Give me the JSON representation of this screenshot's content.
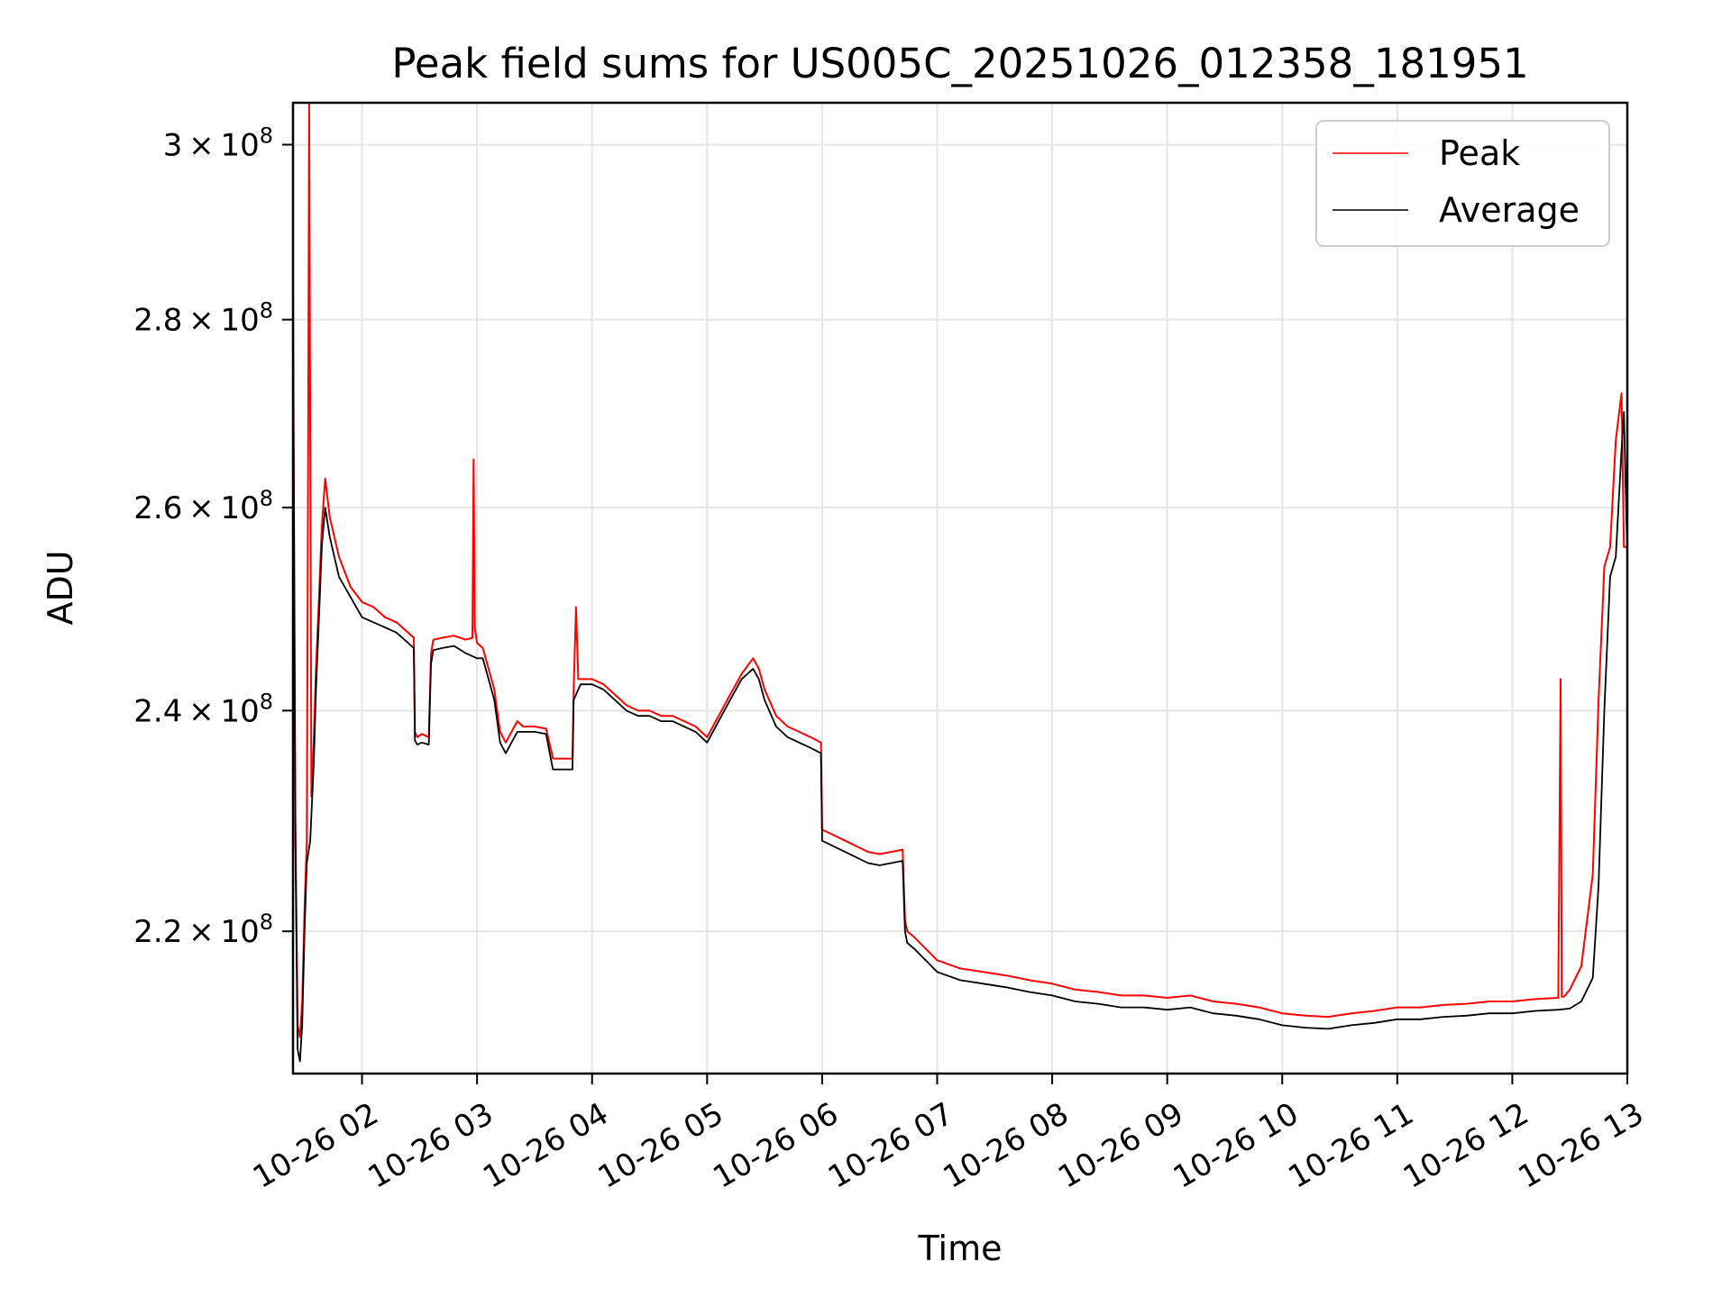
{
  "chart_data": {
    "type": "line",
    "title": "Peak field sums for US005C_20251026_012358_181951",
    "xlabel": "Time",
    "ylabel": "ADU",
    "y_scale": "log",
    "xlim": [
      1.4,
      13.0
    ],
    "ylim": [
      208000000.0,
      305000000.0
    ],
    "grid": true,
    "legend_position": "upper right",
    "x_ticks": [
      {
        "value": 2,
        "label": "10-26 02"
      },
      {
        "value": 3,
        "label": "10-26 03"
      },
      {
        "value": 4,
        "label": "10-26 04"
      },
      {
        "value": 5,
        "label": "10-26 05"
      },
      {
        "value": 6,
        "label": "10-26 06"
      },
      {
        "value": 7,
        "label": "10-26 07"
      },
      {
        "value": 8,
        "label": "10-26 08"
      },
      {
        "value": 9,
        "label": "10-26 09"
      },
      {
        "value": 10,
        "label": "10-26 10"
      },
      {
        "value": 11,
        "label": "10-26 11"
      },
      {
        "value": 12,
        "label": "10-26 12"
      },
      {
        "value": 13,
        "label": "10-26 13"
      }
    ],
    "y_ticks": [
      {
        "value": 220000000.0,
        "mantissa": "2.2",
        "base": "10",
        "exp": "8"
      },
      {
        "value": 240000000.0,
        "mantissa": "2.4",
        "base": "10",
        "exp": "8"
      },
      {
        "value": 260000000.0,
        "mantissa": "2.6",
        "base": "10",
        "exp": "8"
      },
      {
        "value": 280000000.0,
        "mantissa": "2.8",
        "base": "10",
        "exp": "8"
      },
      {
        "value": 300000000.0,
        "mantissa": "3",
        "base": "10",
        "exp": "8"
      }
    ],
    "series": [
      {
        "name": "Average",
        "color": "#000000",
        "x": [
          1.4,
          1.42,
          1.44,
          1.46,
          1.48,
          1.5,
          1.52,
          1.55,
          1.58,
          1.6,
          1.63,
          1.65,
          1.68,
          1.72,
          1.8,
          1.9,
          2.0,
          2.1,
          2.2,
          2.3,
          2.4,
          2.45,
          2.46,
          2.48,
          2.52,
          2.58,
          2.6,
          2.62,
          2.7,
          2.8,
          2.9,
          3.0,
          3.05,
          3.1,
          3.15,
          3.2,
          3.25,
          3.3,
          3.35,
          3.4,
          3.5,
          3.6,
          3.65,
          3.66,
          3.7,
          3.8,
          3.83,
          3.84,
          3.88,
          3.9,
          4.0,
          4.1,
          4.2,
          4.3,
          4.4,
          4.5,
          4.6,
          4.7,
          4.8,
          4.9,
          5.0,
          5.1,
          5.2,
          5.3,
          5.4,
          5.45,
          5.5,
          5.6,
          5.7,
          5.8,
          5.9,
          5.99,
          6.0,
          6.1,
          6.2,
          6.3,
          6.4,
          6.5,
          6.6,
          6.7,
          6.72,
          6.74,
          6.8,
          6.9,
          7.0,
          7.2,
          7.4,
          7.6,
          7.8,
          8.0,
          8.2,
          8.4,
          8.6,
          8.8,
          9.0,
          9.2,
          9.4,
          9.6,
          9.8,
          10.0,
          10.2,
          10.4,
          10.6,
          10.8,
          11.0,
          11.2,
          11.4,
          11.6,
          11.8,
          12.0,
          12.2,
          12.4,
          12.5,
          12.6,
          12.7,
          12.75,
          12.8,
          12.85,
          12.9,
          12.95,
          12.97,
          13.0
        ],
        "y": [
          282000000.0,
          228000000.0,
          210000000.0,
          209000000.0,
          212000000.0,
          220000000.0,
          226000000.0,
          228000000.0,
          235000000.0,
          242000000.0,
          250000000.0,
          256000000.0,
          260000000.0,
          257000000.0,
          253000000.0,
          251000000.0,
          249000000.0,
          248500000.0,
          248000000.0,
          247500000.0,
          246500000.0,
          246000000.0,
          237200000.0,
          236800000.0,
          237000000.0,
          236800000.0,
          244500000.0,
          245800000.0,
          246000000.0,
          246200000.0,
          245500000.0,
          245000000.0,
          245000000.0,
          243000000.0,
          241000000.0,
          237000000.0,
          236000000.0,
          237000000.0,
          238000000.0,
          238000000.0,
          238000000.0,
          237800000.0,
          235000000.0,
          234500000.0,
          234500000.0,
          234500000.0,
          234500000.0,
          241000000.0,
          242000000.0,
          242500000.0,
          242500000.0,
          242000000.0,
          241000000.0,
          240000000.0,
          239500000.0,
          239500000.0,
          239000000.0,
          239000000.0,
          238500000.0,
          238000000.0,
          237000000.0,
          239000000.0,
          241000000.0,
          243000000.0,
          244000000.0,
          243000000.0,
          241000000.0,
          238500000.0,
          237500000.0,
          237000000.0,
          236500000.0,
          236000000.0,
          228000000.0,
          227500000.0,
          227000000.0,
          226500000.0,
          226000000.0,
          225800000.0,
          226000000.0,
          226200000.0,
          220000000.0,
          219000000.0,
          218500000.0,
          217500000.0,
          216500000.0,
          215800000.0,
          215500000.0,
          215200000.0,
          214800000.0,
          214500000.0,
          214000000.0,
          213800000.0,
          213500000.0,
          213500000.0,
          213300000.0,
          213500000.0,
          213000000.0,
          212800000.0,
          212500000.0,
          212000000.0,
          211800000.0,
          211700000.0,
          212000000.0,
          212200000.0,
          212500000.0,
          212500000.0,
          212700000.0,
          212800000.0,
          213000000.0,
          213000000.0,
          213200000.0,
          213300000.0,
          213400000.0,
          214000000.0,
          216000000.0,
          224000000.0,
          240000000.0,
          253000000.0,
          255000000.0,
          266000000.0,
          270000000.0,
          255000000.0
        ]
      },
      {
        "name": "Peak",
        "color": "#ff0000",
        "x": [
          1.4,
          1.42,
          1.44,
          1.46,
          1.48,
          1.5,
          1.52,
          1.53,
          1.54,
          1.56,
          1.58,
          1.6,
          1.63,
          1.65,
          1.68,
          1.72,
          1.8,
          1.9,
          2.0,
          2.1,
          2.2,
          2.3,
          2.4,
          2.45,
          2.46,
          2.48,
          2.52,
          2.58,
          2.6,
          2.62,
          2.7,
          2.8,
          2.9,
          2.96,
          2.97,
          2.98,
          3.0,
          3.05,
          3.1,
          3.15,
          3.2,
          3.25,
          3.3,
          3.35,
          3.4,
          3.5,
          3.6,
          3.65,
          3.66,
          3.7,
          3.8,
          3.83,
          3.84,
          3.86,
          3.88,
          3.9,
          4.0,
          4.1,
          4.2,
          4.3,
          4.4,
          4.5,
          4.6,
          4.7,
          4.8,
          4.9,
          5.0,
          5.1,
          5.2,
          5.3,
          5.4,
          5.45,
          5.5,
          5.6,
          5.7,
          5.8,
          5.9,
          5.99,
          6.0,
          6.1,
          6.2,
          6.3,
          6.4,
          6.5,
          6.6,
          6.7,
          6.72,
          6.74,
          6.8,
          6.9,
          7.0,
          7.2,
          7.4,
          7.6,
          7.8,
          8.0,
          8.2,
          8.4,
          8.6,
          8.8,
          9.0,
          9.2,
          9.4,
          9.6,
          9.8,
          10.0,
          10.2,
          10.4,
          10.6,
          10.8,
          11.0,
          11.2,
          11.4,
          11.6,
          11.8,
          12.0,
          12.2,
          12.4,
          12.42,
          12.43,
          12.45,
          12.5,
          12.6,
          12.7,
          12.75,
          12.8,
          12.85,
          12.9,
          12.95,
          12.97,
          13.0
        ],
        "y": [
          284000000.0,
          230000000.0,
          212000000.0,
          211000000.0,
          214000000.0,
          222000000.0,
          228000000.0,
          260000000.0,
          305000000.0,
          232000000.0,
          237000000.0,
          244000000.0,
          252000000.0,
          258000000.0,
          263000000.0,
          259000000.0,
          255000000.0,
          252000000.0,
          250500000.0,
          250000000.0,
          249000000.0,
          248500000.0,
          247500000.0,
          247000000.0,
          238000000.0,
          237500000.0,
          237800000.0,
          237500000.0,
          245500000.0,
          246800000.0,
          247000000.0,
          247200000.0,
          246800000.0,
          247000000.0,
          265000000.0,
          248000000.0,
          246500000.0,
          246000000.0,
          244000000.0,
          242000000.0,
          238000000.0,
          237000000.0,
          238000000.0,
          239000000.0,
          238500000.0,
          238500000.0,
          238300000.0,
          236000000.0,
          235500000.0,
          235500000.0,
          235500000.0,
          235500000.0,
          242000000.0,
          250000000.0,
          243000000.0,
          243000000.0,
          243000000.0,
          242500000.0,
          241500000.0,
          240500000.0,
          240000000.0,
          240000000.0,
          239500000.0,
          239500000.0,
          239000000.0,
          238500000.0,
          237500000.0,
          239500000.0,
          241500000.0,
          243500000.0,
          245000000.0,
          244000000.0,
          242000000.0,
          239500000.0,
          238500000.0,
          238000000.0,
          237500000.0,
          237000000.0,
          229000000.0,
          228500000.0,
          228000000.0,
          227500000.0,
          227000000.0,
          226800000.0,
          227000000.0,
          227200000.0,
          221000000.0,
          220000000.0,
          219500000.0,
          218500000.0,
          217500000.0,
          216800000.0,
          216500000.0,
          216200000.0,
          215800000.0,
          215500000.0,
          215000000.0,
          214800000.0,
          214500000.0,
          214500000.0,
          214300000.0,
          214500000.0,
          214000000.0,
          213800000.0,
          213500000.0,
          213000000.0,
          212800000.0,
          212700000.0,
          213000000.0,
          213200000.0,
          213500000.0,
          213500000.0,
          213700000.0,
          213800000.0,
          214000000.0,
          214000000.0,
          214200000.0,
          214300000.0,
          243000000.0,
          214400000.0,
          214400000.0,
          215000000.0,
          217000000.0,
          225000000.0,
          241000000.0,
          254000000.0,
          256000000.0,
          267000000.0,
          272000000.0,
          256000000.0,
          256000000.0
        ]
      }
    ]
  }
}
